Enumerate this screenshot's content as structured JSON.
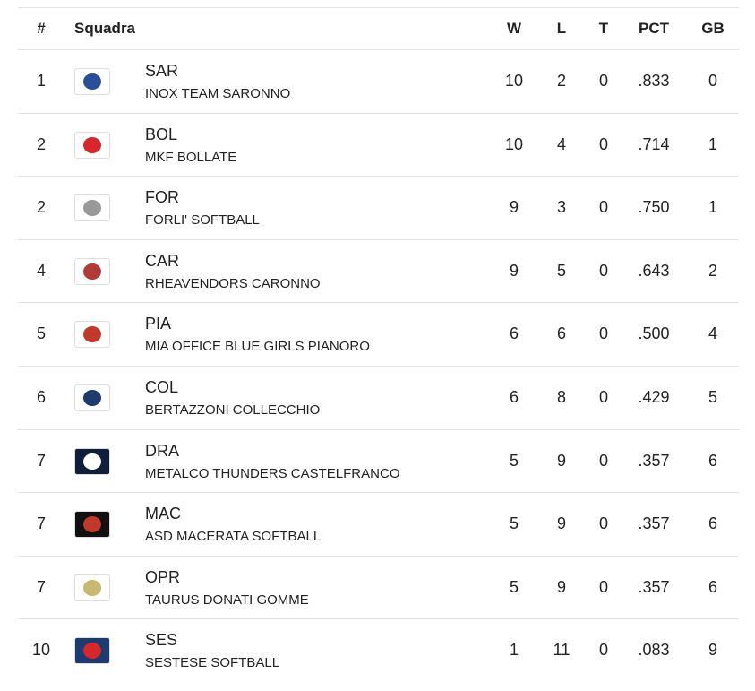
{
  "table": {
    "columns": [
      "#",
      "Squadra",
      "W",
      "L",
      "T",
      "PCT",
      "GB"
    ],
    "rows": [
      [
        "1",
        "SAR",
        "INOX TEAM SARONNO",
        "10",
        "2",
        "0",
        ".833",
        "0"
      ],
      [
        "2",
        "BOL",
        "MKF BOLLATE",
        "10",
        "4",
        "0",
        ".714",
        "1"
      ],
      [
        "2",
        "FOR",
        "FORLI' SOFTBALL",
        "9",
        "3",
        "0",
        ".750",
        "1"
      ],
      [
        "4",
        "CAR",
        "RHEAVENDORS CARONNO",
        "9",
        "5",
        "0",
        ".643",
        "2"
      ],
      [
        "5",
        "PIA",
        "MIA OFFICE BLUE GIRLS PIANORO",
        "6",
        "6",
        "0",
        ".500",
        "4"
      ],
      [
        "6",
        "COL",
        "BERTAZZONI COLLECCHIO",
        "6",
        "8",
        "0",
        ".429",
        "5"
      ],
      [
        "7",
        "DRA",
        "METALCO THUNDERS CASTELFRANCO",
        "5",
        "9",
        "0",
        ".357",
        "6"
      ],
      [
        "7",
        "MAC",
        "ASD MACERATA SOFTBALL",
        "5",
        "9",
        "0",
        ".357",
        "6"
      ],
      [
        "7",
        "OPR",
        "TAURUS DONATI GOMME",
        "5",
        "9",
        "0",
        ".357",
        "6"
      ],
      [
        "10",
        "SES",
        "SESTESE SOFTBALL",
        "1",
        "11",
        "0",
        ".083",
        "9"
      ]
    ]
  }
}
